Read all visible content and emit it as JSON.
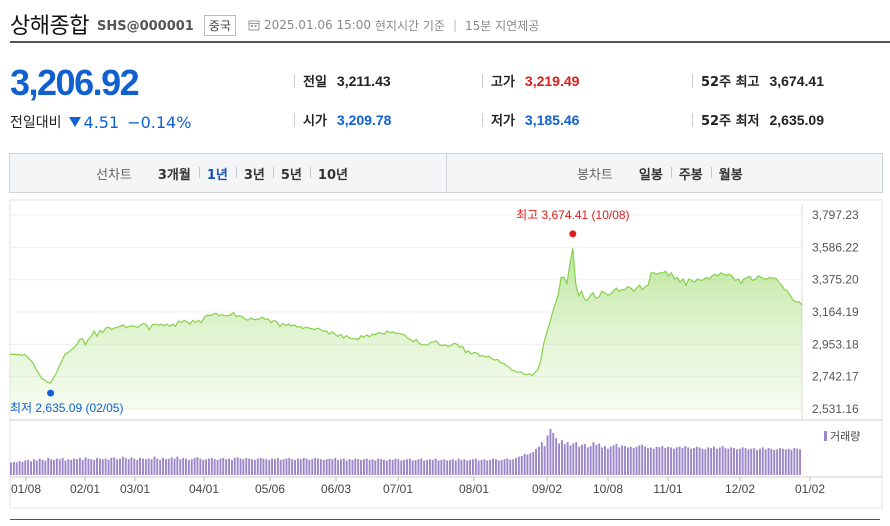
{
  "header": {
    "title": "상해종합",
    "code": "SHS@000001",
    "market": "중국",
    "datetime": "2025.01.06 15:00",
    "time_basis": "현지시간 기준",
    "delay": "15분 지연제공"
  },
  "quote": {
    "price": "3,206.92",
    "change_label": "전일대비",
    "change_direction": "down",
    "change_value": "4.51",
    "change_pct": "−0.14%"
  },
  "stats": {
    "prev_close": {
      "label": "전일",
      "value": "3,211.43"
    },
    "open": {
      "label": "시가",
      "value": "3,209.78"
    },
    "high": {
      "label": "고가",
      "value": "3,219.49"
    },
    "low": {
      "label": "저가",
      "value": "3,185.46"
    },
    "high52": {
      "label": "52주 최고",
      "value": "3,674.41"
    },
    "low52": {
      "label": "52주 최저",
      "value": "2,635.09"
    }
  },
  "tabs": {
    "line_label": "선차트",
    "line_periods": [
      "3개월",
      "1년",
      "3년",
      "5년",
      "10년"
    ],
    "line_active": "1년",
    "candle_label": "봉차트",
    "candle_periods": [
      "일봉",
      "주봉",
      "월봉"
    ]
  },
  "colors": {
    "accent_blue": "#1060d0",
    "up_red": "#e01a1a",
    "line_green": "#86d14a",
    "fill_green": "#d8f2c2",
    "volume_purple": "#9b86c8"
  },
  "chart_data": {
    "type": "area",
    "y_ticks": [
      "3,797.23",
      "3,586.22",
      "3,375.20",
      "3,164.19",
      "2,953.18",
      "2,742.17",
      "2,531.16"
    ],
    "ylim": [
      2531.16,
      3797.23
    ],
    "x_ticks": [
      "01/08",
      "02/01",
      "03/01",
      "04/01",
      "05/06",
      "06/03",
      "07/01",
      "08/01",
      "09/02",
      "10/08",
      "11/01",
      "12/02",
      "01/02"
    ],
    "max_annotation": {
      "label": "최고",
      "value": "3,674.41",
      "date": "(10/08)",
      "value_num": 3674.41
    },
    "min_annotation": {
      "label": "최저",
      "value": "2,635.09",
      "date": "(02/05)",
      "value_num": 2635.09
    },
    "volume_legend": "거래량",
    "series": [
      {
        "name": "",
        "values": [
          2886,
          2890,
          2885,
          2888,
          2880,
          2888,
          2870,
          2850,
          2830,
          2790,
          2760,
          2730,
          2720,
          2705,
          2700,
          2735,
          2765,
          2810,
          2850,
          2890,
          2900,
          2915,
          2930,
          2950,
          2985,
          2990,
          2950,
          2985,
          3005,
          3040,
          3005,
          3045,
          3030,
          3060,
          3065,
          3050,
          3060,
          3065,
          3070,
          3080,
          3062,
          3070,
          3075,
          3068,
          3065,
          3078,
          3090,
          3080,
          3048,
          3080,
          3085,
          3078,
          3085,
          3075,
          3085,
          3070,
          3085,
          3072,
          3105,
          3096,
          3110,
          3100,
          3085,
          3110,
          3095,
          3110,
          3095,
          3130,
          3145,
          3140,
          3150,
          3155,
          3140,
          3148,
          3140,
          3140,
          3145,
          3160,
          3135,
          3140,
          3135,
          3120,
          3110,
          3125,
          3115,
          3115,
          3120,
          3130,
          3115,
          3120,
          3095,
          3110,
          3100,
          3070,
          3090,
          3075,
          3085,
          3072,
          3080,
          3065,
          3070,
          3055,
          3065,
          3060,
          3055,
          3050,
          3060,
          3050,
          3040,
          3040,
          3020,
          3035,
          3020,
          3005,
          3018,
          2995,
          3010,
          2995,
          2990,
          2990,
          2985,
          3010,
          3000,
          3015,
          3002,
          3020,
          3015,
          3030,
          3025,
          3020,
          3040,
          3030,
          3035,
          3025,
          3025,
          3020,
          3015,
          2995,
          2985,
          2970,
          2985,
          2960,
          2950,
          2950,
          2950,
          2965,
          2970,
          2975,
          2950,
          2945,
          2950,
          2940,
          2945,
          2960,
          2955,
          2935,
          2940,
          2900,
          2910,
          2890,
          2900,
          2895,
          2875,
          2880,
          2870,
          2875,
          2860,
          2850,
          2855,
          2835,
          2830,
          2815,
          2805,
          2785,
          2780,
          2770,
          2775,
          2760,
          2755,
          2760,
          2750,
          2770,
          2790,
          2850,
          2960,
          3030,
          3090,
          3160,
          3220,
          3280,
          3390,
          3390,
          3350,
          3480,
          3580,
          3350,
          3270,
          3300,
          3250,
          3240,
          3270,
          3290,
          3255,
          3260,
          3300,
          3290,
          3275,
          3280,
          3300,
          3320,
          3300,
          3310,
          3310,
          3330,
          3320,
          3300,
          3320,
          3340,
          3310,
          3330,
          3340,
          3420,
          3420,
          3410,
          3420,
          3420,
          3430,
          3400,
          3420,
          3380,
          3390,
          3360,
          3380,
          3340,
          3380,
          3370,
          3360,
          3380,
          3370,
          3375,
          3390,
          3380,
          3400,
          3410,
          3400,
          3420,
          3410,
          3405,
          3410,
          3395,
          3370,
          3380,
          3350,
          3380,
          3390,
          3395,
          3370,
          3380,
          3400,
          3390,
          3380,
          3380,
          3390,
          3385,
          3385,
          3360,
          3340,
          3310,
          3300,
          3270,
          3240,
          3230,
          3230,
          3210
        ]
      }
    ],
    "volume": [
      38,
      40,
      38,
      42,
      40,
      44,
      46,
      42,
      48,
      44,
      50,
      46,
      44,
      52,
      48,
      46,
      50,
      48,
      52,
      44,
      48,
      46,
      50,
      48,
      52,
      46,
      54,
      50,
      48,
      46,
      52,
      50,
      48,
      50,
      46,
      52,
      54,
      48,
      50,
      56,
      52,
      48,
      54,
      50,
      46,
      52,
      50,
      48,
      50,
      48,
      56,
      50,
      46,
      52,
      48,
      50,
      54,
      50,
      56,
      48,
      52,
      50,
      46,
      48,
      52,
      54,
      50,
      46,
      48,
      50,
      52,
      48,
      46,
      50,
      52,
      48,
      50,
      46,
      52,
      54,
      50,
      48,
      52,
      50,
      48,
      46,
      50,
      52,
      50,
      48,
      46,
      50,
      48,
      52,
      46,
      48,
      50,
      52,
      48,
      46,
      50,
      48,
      52,
      50,
      46,
      48,
      52,
      50,
      48,
      46,
      48,
      50,
      48,
      52,
      46,
      48,
      50,
      44,
      48,
      46,
      50,
      48,
      46,
      48,
      50,
      46,
      48,
      44,
      50,
      48,
      46,
      44,
      48,
      46,
      50,
      48,
      44,
      46,
      48,
      50,
      44,
      46,
      48,
      50,
      44,
      46,
      48,
      46,
      50,
      44,
      46,
      48,
      44,
      46,
      48,
      44,
      50,
      46,
      48,
      44,
      46,
      48,
      50,
      44,
      46,
      48,
      44,
      46,
      50,
      48,
      44,
      46,
      48,
      50,
      46,
      48,
      52,
      56,
      58,
      64,
      62,
      66,
      70,
      80,
      86,
      100,
      88,
      120,
      140,
      128,
      112,
      96,
      106,
      94,
      100,
      90,
      96,
      100,
      86,
      92,
      94,
      84,
      88,
      100,
      92,
      96,
      84,
      88,
      80,
      86,
      90,
      94,
      84,
      90,
      88,
      84,
      86,
      82,
      86,
      90,
      92,
      86,
      82,
      84,
      80,
      86,
      84,
      88,
      82,
      86,
      84,
      80,
      84,
      86,
      82,
      88,
      84,
      80,
      82,
      86,
      84,
      80,
      78,
      84,
      82,
      86,
      80,
      84,
      88,
      82,
      80,
      84,
      82,
      78,
      80,
      84,
      82,
      78,
      80,
      82,
      76,
      80,
      84,
      78,
      82,
      80,
      76,
      78,
      82,
      80,
      78,
      80,
      76,
      82,
      80,
      78
    ]
  }
}
